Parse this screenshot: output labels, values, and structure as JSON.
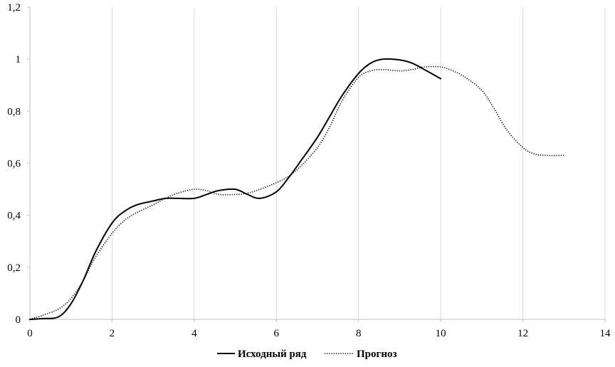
{
  "chart_data": {
    "type": "line",
    "title": "",
    "xlabel": "",
    "ylabel": "",
    "xlim": [
      0,
      14
    ],
    "ylim": [
      0,
      1.2
    ],
    "x_ticks": [
      0,
      2,
      4,
      6,
      8,
      10,
      12,
      14
    ],
    "x_tick_labels": [
      "0",
      "2",
      "4",
      "6",
      "8",
      "10",
      "12",
      "14"
    ],
    "y_ticks": [
      0,
      0.2,
      0.4,
      0.6,
      0.8,
      1.0,
      1.2
    ],
    "y_tick_labels": [
      "0",
      "0,2",
      "0,4",
      "0,6",
      "0,8",
      "1",
      "1,2"
    ],
    "grid": "vertical",
    "legend_position": "bottom",
    "series": [
      {
        "name": "Исходный ряд",
        "style": "solid",
        "color": "#000000",
        "x": [
          0,
          0.3,
          0.7,
          1.0,
          1.3,
          1.6,
          2.0,
          2.3,
          2.6,
          3.0,
          3.3,
          3.6,
          4.0,
          4.3,
          4.6,
          5.0,
          5.3,
          5.6,
          6.0,
          6.3,
          6.6,
          7.0,
          7.3,
          7.6,
          8.0,
          8.3,
          8.6,
          9.0,
          9.3,
          9.6,
          10.0
        ],
        "y": [
          0,
          0.003,
          0.01,
          0.06,
          0.15,
          0.26,
          0.37,
          0.415,
          0.44,
          0.455,
          0.465,
          0.465,
          0.465,
          0.48,
          0.495,
          0.5,
          0.48,
          0.465,
          0.49,
          0.545,
          0.61,
          0.7,
          0.78,
          0.86,
          0.945,
          0.985,
          1.0,
          0.997,
          0.985,
          0.96,
          0.925
        ]
      },
      {
        "name": "Прогноз",
        "style": "dotted",
        "color": "#000000",
        "x": [
          0,
          0.3,
          0.7,
          1.0,
          1.3,
          1.6,
          2.0,
          2.3,
          2.6,
          3.0,
          3.3,
          3.6,
          4.0,
          4.3,
          4.6,
          5.0,
          5.3,
          5.6,
          6.0,
          6.3,
          6.6,
          7.0,
          7.3,
          7.6,
          8.0,
          8.3,
          8.6,
          9.0,
          9.3,
          9.6,
          10.0,
          10.3,
          10.6,
          11.0,
          11.3,
          11.6,
          12.0,
          12.3,
          12.6,
          13.0
        ],
        "y": [
          0,
          0.015,
          0.04,
          0.08,
          0.15,
          0.24,
          0.33,
          0.38,
          0.41,
          0.44,
          0.465,
          0.485,
          0.5,
          0.495,
          0.48,
          0.48,
          0.485,
          0.5,
          0.525,
          0.55,
          0.59,
          0.66,
          0.74,
          0.84,
          0.93,
          0.955,
          0.96,
          0.955,
          0.96,
          0.97,
          0.97,
          0.955,
          0.93,
          0.88,
          0.81,
          0.73,
          0.66,
          0.635,
          0.63,
          0.63
        ]
      }
    ]
  }
}
